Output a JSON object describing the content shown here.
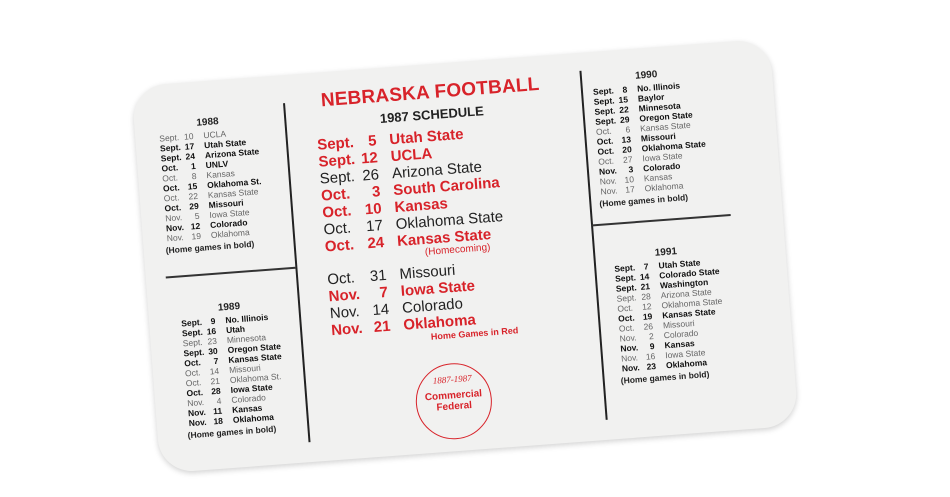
{
  "card": {
    "title": "NEBRASKA FOOTBALL",
    "subtitle": "1987 SCHEDULE",
    "accent_color": "#d8232a",
    "schedule_1987": [
      {
        "month": "Sept.",
        "day": "5",
        "opponent": "Utah State",
        "home": true
      },
      {
        "month": "Sept.",
        "day": "12",
        "opponent": "UCLA",
        "home": true
      },
      {
        "month": "Sept.",
        "day": "26",
        "opponent": "Arizona State",
        "home": false
      },
      {
        "month": "Oct.",
        "day": "3",
        "opponent": "South Carolina",
        "home": true
      },
      {
        "month": "Oct.",
        "day": "10",
        "opponent": "Kansas",
        "home": true
      },
      {
        "month": "Oct.",
        "day": "17",
        "opponent": "Oklahoma State",
        "home": false
      },
      {
        "month": "Oct.",
        "day": "24",
        "opponent": "Kansas State",
        "home": true
      },
      {
        "month": "Oct.",
        "day": "31",
        "opponent": "Missouri",
        "home": false
      },
      {
        "month": "Nov.",
        "day": "7",
        "opponent": "Iowa State",
        "home": true
      },
      {
        "month": "Nov.",
        "day": "14",
        "opponent": "Colorado",
        "home": false
      },
      {
        "month": "Nov.",
        "day": "21",
        "opponent": "Oklahoma",
        "home": true
      }
    ],
    "homecoming_note": "(Homecoming)",
    "red_note": "Home Games in Red",
    "logo": {
      "years": "1887-1987",
      "name_line1": "Commercial",
      "name_line2": "Federal"
    },
    "other_years": [
      {
        "year": "1988",
        "note": "(Home games in bold)",
        "games": [
          [
            "Sept.",
            "10",
            "UCLA",
            false
          ],
          [
            "Sept.",
            "17",
            "Utah State",
            true
          ],
          [
            "Sept.",
            "24",
            "Arizona State",
            true
          ],
          [
            "Oct.",
            "1",
            "UNLV",
            true
          ],
          [
            "Oct.",
            "8",
            "Kansas",
            false
          ],
          [
            "Oct.",
            "15",
            "Oklahoma St.",
            true
          ],
          [
            "Oct.",
            "22",
            "Kansas State",
            false
          ],
          [
            "Oct.",
            "29",
            "Missouri",
            true
          ],
          [
            "Nov.",
            "5",
            "Iowa State",
            false
          ],
          [
            "Nov.",
            "12",
            "Colorado",
            true
          ],
          [
            "Nov.",
            "19",
            "Oklahoma",
            false
          ]
        ]
      },
      {
        "year": "1989",
        "note": "(Home games in bold)",
        "games": [
          [
            "Sept.",
            "9",
            "No. Illinois",
            true
          ],
          [
            "Sept.",
            "16",
            "Utah",
            true
          ],
          [
            "Sept.",
            "23",
            "Minnesota",
            false
          ],
          [
            "Sept.",
            "30",
            "Oregon State",
            true
          ],
          [
            "Oct.",
            "7",
            "Kansas State",
            true
          ],
          [
            "Oct.",
            "14",
            "Missouri",
            false
          ],
          [
            "Oct.",
            "21",
            "Oklahoma St.",
            false
          ],
          [
            "Oct.",
            "28",
            "Iowa State",
            true
          ],
          [
            "Nov.",
            "4",
            "Colorado",
            false
          ],
          [
            "Nov.",
            "11",
            "Kansas",
            true
          ],
          [
            "Nov.",
            "18",
            "Oklahoma",
            true
          ]
        ]
      },
      {
        "year": "1990",
        "note": "(Home games in bold)",
        "games": [
          [
            "Sept.",
            "8",
            "No. Illinois",
            true
          ],
          [
            "Sept.",
            "15",
            "Baylor",
            true
          ],
          [
            "Sept.",
            "22",
            "Minnesota",
            true
          ],
          [
            "Sept.",
            "29",
            "Oregon State",
            true
          ],
          [
            "Oct.",
            "6",
            "Kansas State",
            false
          ],
          [
            "Oct.",
            "13",
            "Missouri",
            true
          ],
          [
            "Oct.",
            "20",
            "Oklahoma State",
            true
          ],
          [
            "Oct.",
            "27",
            "Iowa State",
            false
          ],
          [
            "Nov.",
            "3",
            "Colorado",
            true
          ],
          [
            "Nov.",
            "10",
            "Kansas",
            false
          ],
          [
            "Nov.",
            "17",
            "Oklahoma",
            false
          ]
        ]
      },
      {
        "year": "1991",
        "note": "(Home games in bold)",
        "games": [
          [
            "Sept.",
            "7",
            "Utah State",
            true
          ],
          [
            "Sept.",
            "14",
            "Colorado State",
            true
          ],
          [
            "Sept.",
            "21",
            "Washington",
            true
          ],
          [
            "Sept.",
            "28",
            "Arizona State",
            false
          ],
          [
            "Oct.",
            "12",
            "Oklahoma State",
            false
          ],
          [
            "Oct.",
            "19",
            "Kansas State",
            true
          ],
          [
            "Oct.",
            "26",
            "Missouri",
            false
          ],
          [
            "Nov.",
            "2",
            "Colorado",
            false
          ],
          [
            "Nov.",
            "9",
            "Kansas",
            true
          ],
          [
            "Nov.",
            "16",
            "Iowa State",
            false
          ],
          [
            "Nov.",
            "23",
            "Oklahoma",
            true
          ]
        ]
      }
    ]
  }
}
